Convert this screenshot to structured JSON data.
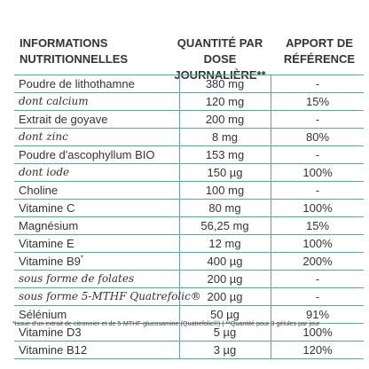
{
  "header": {
    "col1_line1": "INFORMATIONS",
    "col1_line2": "NUTRITIONNELLES",
    "col2_line1": "QUANTITÉ PAR",
    "col2_line2": "DOSE JOURNALIÈRE**",
    "col3_line1": "APPORT DE",
    "col3_line2": "RÉFÉRENCE"
  },
  "rows": [
    {
      "name": "Poudre de lithothamne",
      "qty": "380 mg",
      "ref": "-",
      "italic": false
    },
    {
      "name": "dont calcium",
      "qty": "120 mg",
      "ref": "15%",
      "italic": true
    },
    {
      "name": "Extrait de goyave",
      "qty": "200 mg",
      "ref": "-",
      "italic": false
    },
    {
      "name": "dont zinc",
      "qty": "8 mg",
      "ref": "80%",
      "italic": true
    },
    {
      "name": "Poudre d'ascophyllum BIO",
      "qty": "153 mg",
      "ref": "-",
      "italic": false
    },
    {
      "name": "dont iode",
      "qty": "150 µg",
      "ref": "100%",
      "italic": true
    },
    {
      "name": "Choline",
      "qty": "100 mg",
      "ref": "-",
      "italic": false
    },
    {
      "name": "Vitamine C",
      "qty": "80 mg",
      "ref": "100%",
      "italic": false
    },
    {
      "name": "Magnésium",
      "qty": "56,25 mg",
      "ref": "15%",
      "italic": false
    },
    {
      "name": "Vitamine E",
      "qty": "12 mg",
      "ref": "100%",
      "italic": false
    },
    {
      "name": "Vitamine B9",
      "sup": "*",
      "qty": "400 µg",
      "ref": "200%",
      "italic": false
    },
    {
      "name": "sous forme de folates",
      "qty": "200 µg",
      "ref": "-",
      "italic": true
    },
    {
      "name": "sous forme 5-MTHF Quatrefolic®",
      "qty": "200 µg",
      "ref": "-",
      "italic": true
    },
    {
      "name": "Sélénium",
      "qty": "50 µg",
      "ref": "91%",
      "italic": false
    },
    {
      "name": "Vitamine D3",
      "qty": "5 µg",
      "ref": "100%",
      "italic": false
    },
    {
      "name": "Vitamine B12",
      "qty": "3 µg",
      "ref": "120%",
      "italic": false
    }
  ],
  "footnote": "*Issue d'un extrait de citronnier et de 5-MTHF-glucosamine (Quatrefolic®) | **Quantité pour 3 gélules par jour"
}
